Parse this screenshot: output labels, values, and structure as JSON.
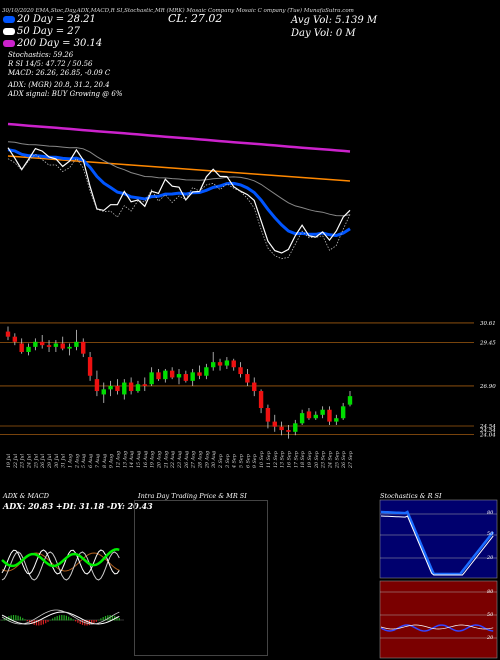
{
  "header": {
    "top_line": "30/10/2020  EMA,Stoc,Day,ADX,MACD,R    SI,Stochastic,MR     (MRK) Mosaic Company   Mosaic C   ompany    (Tue) MunafaSutra.com",
    "cl": "CL: 27.02",
    "avg_vol": "Avg Vol: 5.139 M",
    "day_vol": "Day Vol: 0   M",
    "ema20": "20  Day = 28.21",
    "ema50": "50  Day = 27",
    "ema200": "200  Day = 30.14",
    "stochastics": "Stochastics: 59.26",
    "rsi_line": "R    SI 14/5: 47.72 / 50.56",
    "macd_line": "MACD: 26.26, 26.85, -0.09 C",
    "adx_line": "ADX:                                 (MGR) 20.8,  31.2,  20.4",
    "adx_signal": "ADX  signal:                                    BUY Growing @ 6%"
  },
  "legend_colors": {
    "ema20": "#0055ff",
    "ema50": "#ffffff",
    "ema200": "#cc22cc"
  },
  "price_labels": [
    "30.61",
    "29.45",
    "26.90",
    "24.54",
    "24.54",
    "24.04"
  ],
  "x_labels": [
    "19 Jul",
    "22 Jul",
    "23 Jul",
    "24 Jul",
    "25 Jul",
    "26 Jul",
    "29 Jul",
    "30 Jul",
    "31 Jul",
    "1 Aug",
    "2 Aug",
    "5 Aug",
    "6 Aug",
    "7 Aug",
    "8 Aug",
    "9 Aug",
    "12 Aug",
    "13 Aug",
    "14 Aug",
    "15 Aug",
    "16 Aug",
    "19 Aug",
    "20 Aug",
    "21 Aug",
    "22 Aug",
    "23 Aug",
    "26 Aug",
    "27 Aug",
    "28 Aug",
    "29 Aug",
    "30 Aug",
    "2 Sep",
    "3 Sep",
    "4 Sep",
    "5 Sep",
    "6 Sep",
    "9 Sep",
    "10 Sep",
    "11 Sep",
    "12 Sep",
    "13 Sep",
    "16 Sep",
    "17 Sep",
    "18 Sep",
    "19 Sep",
    "20 Sep",
    "23 Sep",
    "24 Sep",
    "25 Sep",
    "26 Sep",
    "27 Sep"
  ],
  "panels": {
    "adx_title": "ADX  & MACD",
    "adx_values": "ADX: 20.83  +DI: 31.18  -DY: 20.43",
    "intraday_title": "Intra  Day Trading Price  & MR                SI",
    "stoch_title": "Stochastics & R           SI",
    "stoch_ticks": [
      "80",
      "50",
      "20"
    ],
    "rsi_ticks": [
      "80",
      "50",
      "20"
    ]
  },
  "chart_data": [
    {
      "type": "candlestick",
      "title": "",
      "xlabel": "",
      "ylabel": "",
      "ylim": [
        23.6,
        30.9
      ],
      "reference_lines": [
        30.61,
        29.45,
        26.9,
        24.54,
        24.04
      ],
      "candles": [
        {
          "x": "19 Jul",
          "o": 30.1,
          "h": 30.4,
          "l": 29.6,
          "c": 29.8
        },
        {
          "x": "22 Jul",
          "o": 29.8,
          "h": 30.0,
          "l": 29.3,
          "c": 29.5
        },
        {
          "x": "23 Jul",
          "o": 29.4,
          "h": 29.7,
          "l": 28.8,
          "c": 28.9
        },
        {
          "x": "24 Jul",
          "o": 28.9,
          "h": 29.4,
          "l": 28.7,
          "c": 29.2
        },
        {
          "x": "25 Jul",
          "o": 29.2,
          "h": 29.7,
          "l": 29.0,
          "c": 29.5
        },
        {
          "x": "26 Jul",
          "o": 29.5,
          "h": 29.9,
          "l": 29.1,
          "c": 29.3
        },
        {
          "x": "29 Jul",
          "o": 29.3,
          "h": 29.6,
          "l": 28.9,
          "c": 29.2
        },
        {
          "x": "30 Jul",
          "o": 29.2,
          "h": 29.6,
          "l": 28.9,
          "c": 29.4
        },
        {
          "x": "31 Jul",
          "o": 29.4,
          "h": 29.8,
          "l": 29.0,
          "c": 29.1
        },
        {
          "x": "1 Aug",
          "o": 29.1,
          "h": 29.4,
          "l": 28.7,
          "c": 29.2
        },
        {
          "x": "2 Aug",
          "o": 29.2,
          "h": 30.2,
          "l": 29.0,
          "c": 29.5
        },
        {
          "x": "5 Aug",
          "o": 29.5,
          "h": 29.7,
          "l": 28.6,
          "c": 28.8
        },
        {
          "x": "6 Aug",
          "o": 28.6,
          "h": 28.9,
          "l": 27.2,
          "c": 27.5
        },
        {
          "x": "7 Aug",
          "o": 27.3,
          "h": 27.8,
          "l": 26.3,
          "c": 26.6
        },
        {
          "x": "8 Aug",
          "o": 26.4,
          "h": 27.1,
          "l": 25.9,
          "c": 26.7
        },
        {
          "x": "9 Aug",
          "o": 26.7,
          "h": 27.2,
          "l": 26.3,
          "c": 26.9
        },
        {
          "x": "12 Aug",
          "o": 26.9,
          "h": 27.3,
          "l": 26.4,
          "c": 26.6
        },
        {
          "x": "13 Aug",
          "o": 26.4,
          "h": 27.3,
          "l": 26.1,
          "c": 27.1
        },
        {
          "x": "14 Aug",
          "o": 27.1,
          "h": 27.4,
          "l": 26.4,
          "c": 26.6
        },
        {
          "x": "15 Aug",
          "o": 26.6,
          "h": 27.2,
          "l": 26.5,
          "c": 27.0
        },
        {
          "x": "16 Aug",
          "o": 27.0,
          "h": 27.4,
          "l": 26.6,
          "c": 26.9
        },
        {
          "x": "19 Aug",
          "o": 27.0,
          "h": 28.0,
          "l": 26.9,
          "c": 27.7
        },
        {
          "x": "20 Aug",
          "o": 27.7,
          "h": 27.9,
          "l": 27.2,
          "c": 27.3
        },
        {
          "x": "21 Aug",
          "o": 27.3,
          "h": 27.9,
          "l": 27.1,
          "c": 27.8
        },
        {
          "x": "22 Aug",
          "o": 27.8,
          "h": 28.0,
          "l": 27.3,
          "c": 27.4
        },
        {
          "x": "23 Aug",
          "o": 27.4,
          "h": 27.9,
          "l": 27.0,
          "c": 27.6
        },
        {
          "x": "26 Aug",
          "o": 27.6,
          "h": 27.8,
          "l": 27.1,
          "c": 27.2
        },
        {
          "x": "27 Aug",
          "o": 27.2,
          "h": 27.9,
          "l": 26.9,
          "c": 27.7
        },
        {
          "x": "28 Aug",
          "o": 27.7,
          "h": 28.1,
          "l": 27.3,
          "c": 27.5
        },
        {
          "x": "29 Aug",
          "o": 27.5,
          "h": 28.2,
          "l": 27.3,
          "c": 28.0
        },
        {
          "x": "30 Aug",
          "o": 28.0,
          "h": 28.9,
          "l": 27.8,
          "c": 28.3
        },
        {
          "x": "2 Sep",
          "o": 28.3,
          "h": 28.5,
          "l": 27.8,
          "c": 28.1
        },
        {
          "x": "3 Sep",
          "o": 28.1,
          "h": 28.6,
          "l": 27.9,
          "c": 28.4
        },
        {
          "x": "4 Sep",
          "o": 28.4,
          "h": 28.5,
          "l": 27.8,
          "c": 28.0
        },
        {
          "x": "5 Sep",
          "o": 28.0,
          "h": 28.3,
          "l": 27.4,
          "c": 27.6
        },
        {
          "x": "6 Sep",
          "o": 27.6,
          "h": 27.9,
          "l": 26.9,
          "c": 27.1
        },
        {
          "x": "9 Sep",
          "o": 27.1,
          "h": 27.4,
          "l": 26.3,
          "c": 26.6
        },
        {
          "x": "10 Sep",
          "o": 26.6,
          "h": 26.7,
          "l": 25.3,
          "c": 25.6
        },
        {
          "x": "11 Sep",
          "o": 25.6,
          "h": 25.8,
          "l": 24.4,
          "c": 24.8
        },
        {
          "x": "12 Sep",
          "o": 24.8,
          "h": 25.2,
          "l": 24.2,
          "c": 24.5
        },
        {
          "x": "13 Sep",
          "o": 24.5,
          "h": 24.8,
          "l": 24.0,
          "c": 24.3
        },
        {
          "x": "16 Sep",
          "o": 24.3,
          "h": 24.6,
          "l": 23.8,
          "c": 24.2
        },
        {
          "x": "17 Sep",
          "o": 24.2,
          "h": 24.9,
          "l": 24.0,
          "c": 24.7
        },
        {
          "x": "18 Sep",
          "o": 24.7,
          "h": 25.5,
          "l": 24.6,
          "c": 25.3
        },
        {
          "x": "19 Sep",
          "o": 25.4,
          "h": 25.6,
          "l": 24.9,
          "c": 25.0
        },
        {
          "x": "20 Sep",
          "o": 25.0,
          "h": 25.4,
          "l": 24.9,
          "c": 25.2
        },
        {
          "x": "23 Sep",
          "o": 25.2,
          "h": 25.7,
          "l": 25.0,
          "c": 25.5
        },
        {
          "x": "24 Sep",
          "o": 25.5,
          "h": 25.7,
          "l": 24.6,
          "c": 24.8
        },
        {
          "x": "25 Sep",
          "o": 24.8,
          "h": 25.2,
          "l": 24.6,
          "c": 25.0
        },
        {
          "x": "26 Sep",
          "o": 25.0,
          "h": 25.9,
          "l": 24.9,
          "c": 25.7
        },
        {
          "x": "27 Sep",
          "o": 25.8,
          "h": 26.6,
          "l": 25.7,
          "c": 26.3
        }
      ]
    }
  ]
}
